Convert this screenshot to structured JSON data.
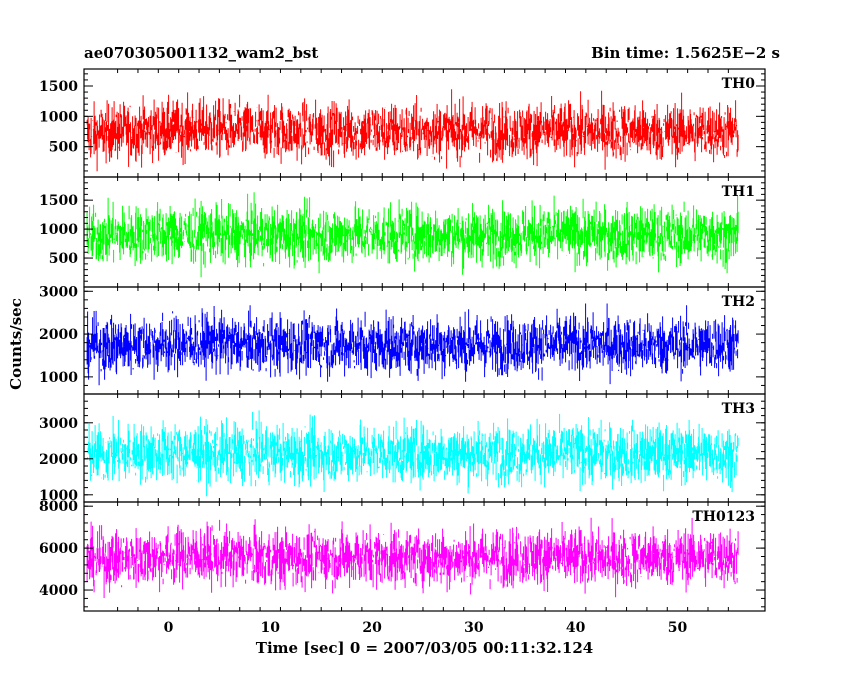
{
  "chart_data": {
    "type": "line",
    "title": "ae070305001132_wam2_bst",
    "subtitle": "Bin time: 1.5625E−2 s",
    "xlabel": "Time [sec] 0 = 2007/03/05 00:11:32.124",
    "ylabel": "Counts/sec",
    "xlim": [
      -8.3,
      58.6
    ],
    "x_ticks": [
      "0",
      "10",
      "20",
      "30",
      "40",
      "50"
    ],
    "data_x_range": [
      -8.0,
      56.0
    ],
    "grid": false,
    "panels": [
      {
        "series_name": "TH0",
        "color": "#ff0000",
        "ylim": [
          0,
          1780
        ],
        "y_ticks": [
          500,
          1000,
          1500
        ],
        "approx_low": 180,
        "approx_mean": 760,
        "approx_high": 1700,
        "x": [
          -8,
          -4,
          0,
          4,
          8,
          12,
          16,
          20,
          24,
          28,
          32,
          36,
          40,
          44,
          48,
          52,
          56
        ],
        "values": [
          700,
          760,
          780,
          800,
          770,
          760,
          750,
          760,
          740,
          760,
          750,
          760,
          750,
          760,
          740,
          760,
          750
        ]
      },
      {
        "series_name": "TH1",
        "color": "#00ff00",
        "ylim": [
          0,
          1900
        ],
        "y_ticks": [
          500,
          1000,
          1500
        ],
        "approx_low": 200,
        "approx_mean": 900,
        "approx_high": 1800,
        "x": [
          -8,
          -4,
          0,
          4,
          8,
          12,
          16,
          20,
          24,
          28,
          32,
          36,
          40,
          44,
          48,
          52,
          56
        ],
        "values": [
          880,
          900,
          920,
          910,
          900,
          890,
          900,
          910,
          900,
          890,
          900,
          910,
          900,
          890,
          900,
          910,
          900
        ]
      },
      {
        "series_name": "TH2",
        "color": "#0000ff",
        "ylim": [
          600,
          3100
        ],
        "y_ticks": [
          1000,
          2000,
          3000
        ],
        "approx_low": 800,
        "approx_mean": 1750,
        "approx_high": 3000,
        "x": [
          -8,
          -4,
          0,
          4,
          8,
          12,
          16,
          20,
          24,
          28,
          32,
          36,
          40,
          44,
          48,
          52,
          56
        ],
        "values": [
          1700,
          1750,
          1780,
          1800,
          1760,
          1750,
          1740,
          1760,
          1750,
          1760,
          1740,
          1750,
          1760,
          1750,
          1740,
          1750,
          1760
        ]
      },
      {
        "series_name": "TH3",
        "color": "#00ffff",
        "ylim": [
          800,
          3800
        ],
        "y_ticks": [
          1000,
          2000,
          3000
        ],
        "approx_low": 1000,
        "approx_mean": 2150,
        "approx_high": 3600,
        "x": [
          -8,
          -4,
          0,
          4,
          8,
          12,
          16,
          20,
          24,
          28,
          32,
          36,
          40,
          44,
          48,
          52,
          56
        ],
        "values": [
          2100,
          2150,
          2180,
          2170,
          2150,
          2140,
          2150,
          2160,
          2150,
          2140,
          2150,
          2160,
          2150,
          2140,
          2150,
          2160,
          2150
        ]
      },
      {
        "series_name": "TH0123",
        "color": "#ff00ff",
        "ylim": [
          3000,
          8200
        ],
        "y_ticks": [
          4000,
          6000,
          8000
        ],
        "approx_low": 3500,
        "approx_mean": 5550,
        "approx_high": 7900,
        "x": [
          -8,
          -4,
          0,
          4,
          8,
          12,
          16,
          20,
          24,
          28,
          32,
          36,
          40,
          44,
          48,
          52,
          56
        ],
        "values": [
          5400,
          5500,
          5600,
          5650,
          5550,
          5500,
          5550,
          5600,
          5550,
          5500,
          5550,
          5600,
          5550,
          5500,
          5550,
          5600,
          5550
        ]
      }
    ]
  }
}
